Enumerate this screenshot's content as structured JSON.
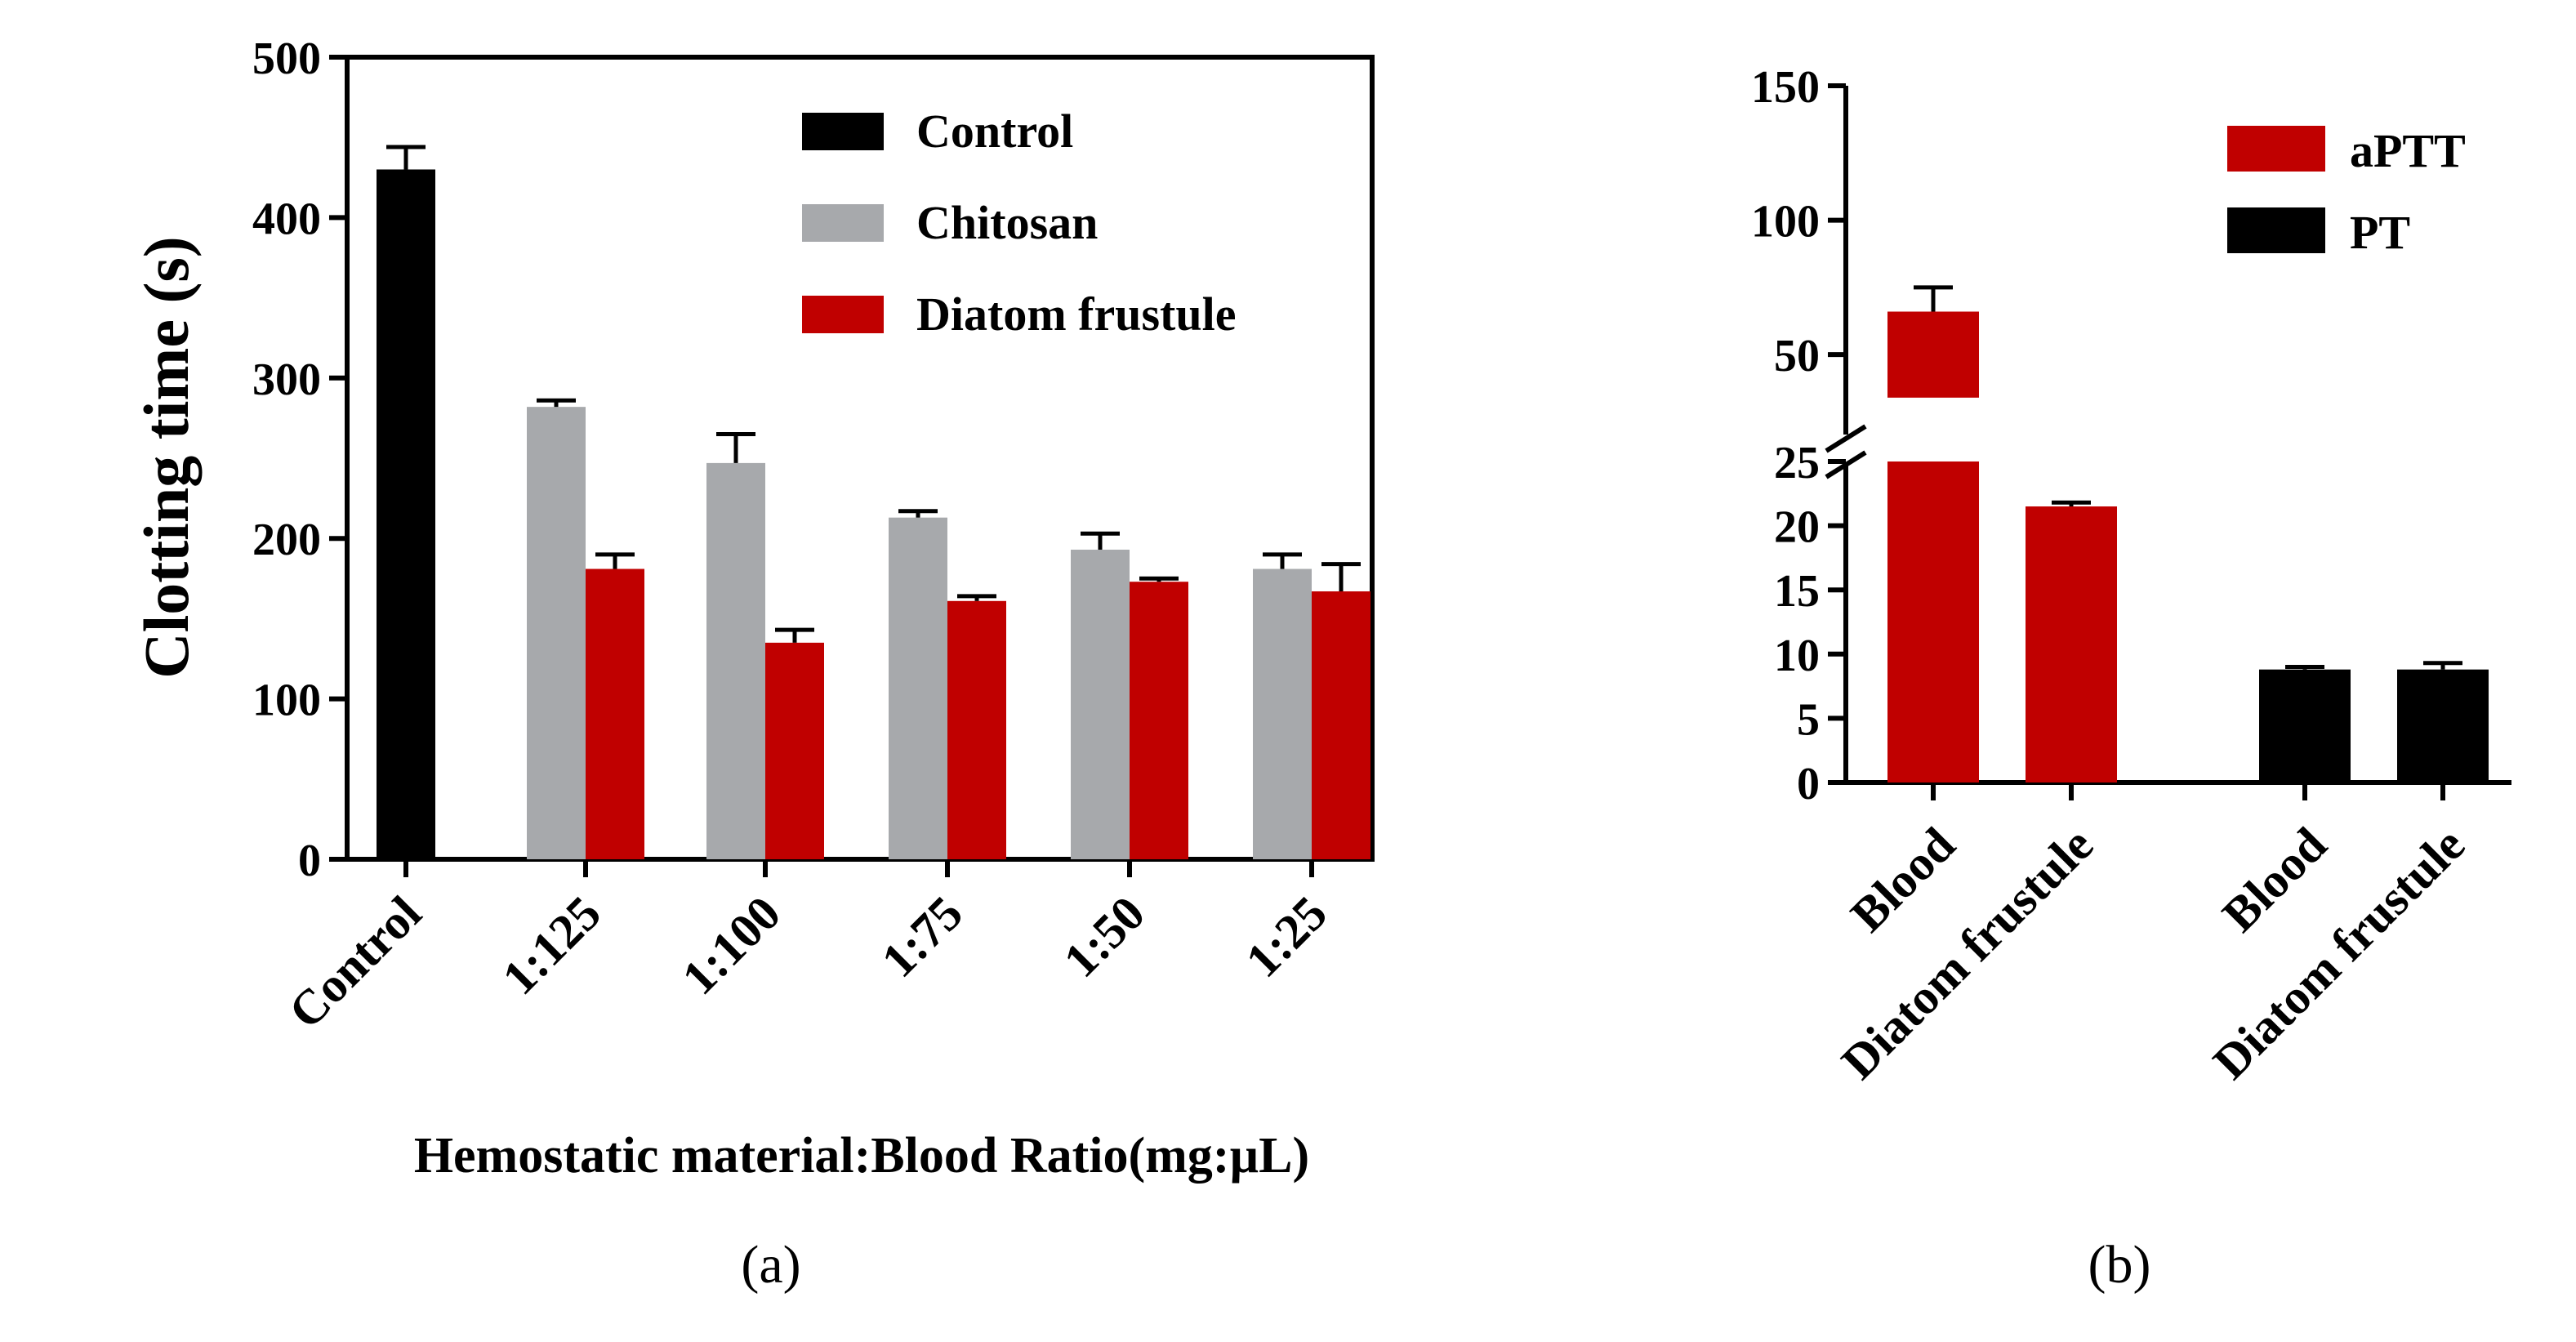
{
  "colors": {
    "control": "#000000",
    "chitosan": "#a7a9ac",
    "diatom": "#c00000",
    "aptt": "#c00000",
    "pt": "#000000"
  },
  "chart_data": [
    {
      "panel": "(a)",
      "type": "bar",
      "ylabel": "Clotting time (s)",
      "xlabel": "Hemostatic material:Blood Ratio(mg:µL)",
      "ylim": [
        0,
        500
      ],
      "yticks": [
        "0",
        "100",
        "200",
        "300",
        "400",
        "500"
      ],
      "categories": [
        "Control",
        "1:125",
        "1:100",
        "1:75",
        "1:50",
        "1:25"
      ],
      "series": [
        {
          "name": "Control",
          "color": "#000000",
          "values": [
            430,
            null,
            null,
            null,
            null,
            null
          ],
          "errors": [
            14,
            null,
            null,
            null,
            null,
            null
          ]
        },
        {
          "name": "Chitosan",
          "color": "#a7a9ac",
          "values": [
            null,
            282,
            247,
            213,
            193,
            181
          ],
          "errors": [
            null,
            4,
            18,
            4,
            10,
            9
          ]
        },
        {
          "name": "Diatom frustule",
          "color": "#c00000",
          "values": [
            null,
            181,
            135,
            161,
            173,
            167
          ],
          "errors": [
            null,
            9,
            8,
            3,
            2,
            17
          ]
        }
      ],
      "legend": [
        "Control",
        "Chitosan",
        "Diatom frustule"
      ],
      "legend_position": "top-right"
    },
    {
      "panel": "(b)",
      "type": "bar",
      "ylabel": "",
      "xlabel": "",
      "axis_break": [
        25,
        30
      ],
      "lower_ylim": [
        0,
        25
      ],
      "upper_ylim": [
        30,
        150
      ],
      "lower_yticks": [
        "0",
        "5",
        "10",
        "15",
        "20",
        "25"
      ],
      "upper_yticks": [
        "50",
        "100",
        "150"
      ],
      "categories": [
        "Blood",
        "Diatom frustule",
        "Blood",
        "Diatom frustule"
      ],
      "series": [
        {
          "name": "aPTT",
          "color": "#c00000",
          "values": [
            66,
            21.5,
            null,
            null
          ],
          "errors": [
            9,
            0.3,
            null,
            null
          ]
        },
        {
          "name": "PT",
          "color": "#000000",
          "values": [
            null,
            null,
            8.8,
            8.8
          ],
          "errors": [
            null,
            null,
            0.2,
            0.5
          ]
        }
      ],
      "legend": [
        "aPTT",
        "PT"
      ],
      "legend_position": "top-right"
    }
  ]
}
